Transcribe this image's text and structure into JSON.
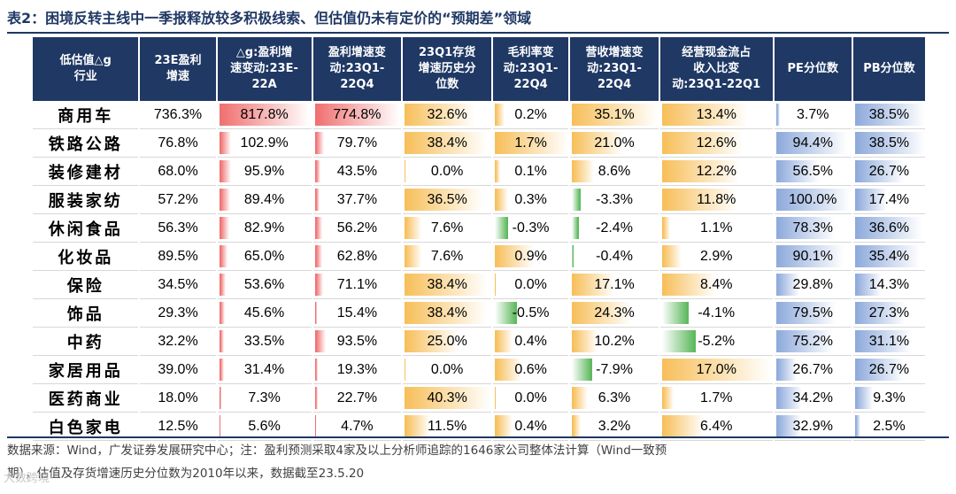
{
  "title": "表2：困境反转主线中一季报释放较多积极线索、但估值仍未有定价的“预期差”领域",
  "columns": [
    "低估值△g\n行业",
    "23E盈利\n增速",
    "△g:盈利增\n速变动:23E-\n22A",
    "盈利增速变\n动:23Q1-\n22Q4",
    "23Q1存货\n增速历史分\n位数",
    "毛利率变\n动:23Q1-\n22Q4",
    "营收增速变\n动:23Q1-\n22Q4",
    "经营现金流占\n收入比变\n动:23Q1-22Q1",
    "PE分位数",
    "PB分位数"
  ],
  "rows": [
    [
      "商用车",
      "736.3%",
      "817.8%",
      "774.8%",
      "32.6%",
      "0.2%",
      "35.1%",
      "13.4%",
      "3.7%",
      "38.5%"
    ],
    [
      "铁路公路",
      "76.8%",
      "102.9%",
      "79.7%",
      "38.4%",
      "1.7%",
      "21.0%",
      "12.6%",
      "94.4%",
      "38.5%"
    ],
    [
      "装修建材",
      "68.0%",
      "95.9%",
      "43.5%",
      "0.0%",
      "0.1%",
      "8.6%",
      "12.2%",
      "56.5%",
      "26.7%"
    ],
    [
      "服装家纺",
      "57.2%",
      "89.4%",
      "37.7%",
      "36.5%",
      "0.3%",
      "-3.3%",
      "11.8%",
      "100.0%",
      "17.4%"
    ],
    [
      "休闲食品",
      "56.3%",
      "82.9%",
      "56.2%",
      "7.6%",
      "-0.3%",
      "-2.4%",
      "1.1%",
      "78.3%",
      "36.6%"
    ],
    [
      "化妆品",
      "89.5%",
      "65.0%",
      "62.8%",
      "7.6%",
      "0.9%",
      "-0.4%",
      "2.9%",
      "90.1%",
      "35.4%"
    ],
    [
      "保险",
      "34.5%",
      "53.6%",
      "71.1%",
      "38.4%",
      "0.0%",
      "17.1%",
      "8.4%",
      "29.8%",
      "14.3%"
    ],
    [
      "饰品",
      "29.3%",
      "45.6%",
      "15.4%",
      "38.4%",
      "-0.5%",
      "24.3%",
      "-4.1%",
      "79.5%",
      "27.3%"
    ],
    [
      "中药",
      "32.2%",
      "33.5%",
      "93.5%",
      "25.0%",
      "0.4%",
      "10.2%",
      "-5.2%",
      "75.2%",
      "31.1%"
    ],
    [
      "家居用品",
      "39.0%",
      "31.4%",
      "19.3%",
      "0.0%",
      "0.6%",
      "-7.9%",
      "17.0%",
      "26.7%",
      "26.7%"
    ],
    [
      "医药商业",
      "18.0%",
      "7.3%",
      "22.7%",
      "40.3%",
      "0.0%",
      "6.3%",
      "1.7%",
      "34.2%",
      "9.3%"
    ],
    [
      "白色家电",
      "12.5%",
      "5.6%",
      "4.7%",
      "11.5%",
      "0.4%",
      "3.2%",
      "6.4%",
      "32.9%",
      "2.5%"
    ]
  ],
  "bar_columns": {
    "2": {
      "max": 817.8,
      "pos": "#f07070"
    },
    "3": {
      "max": 774.8,
      "pos": "#f07070"
    },
    "4": {
      "max": 40.3,
      "pos": "#f7bf5a"
    },
    "5": {
      "max": 1.7,
      "pos": "#f7bf5a",
      "neg": "#5cb85c"
    },
    "6": {
      "max": 35.1,
      "pos": "#f7bf5a",
      "neg": "#5cb85c"
    },
    "7": {
      "max": 17.0,
      "pos": "#f7bf5a",
      "neg": "#5cb85c"
    },
    "8": {
      "max": 100.0,
      "pos": "#8eaadb"
    },
    "9": {
      "max": 38.5,
      "pos": "#8eaadb"
    }
  },
  "footer": {
    "line1": "数据来源：Wind，广发证券发展研究中心；注：盈利预测采取4家及以上分析师追踪的1646家公司整体法计算（Wind一致预",
    "line2": "期），估值及存货增速历史分位数为2010年以来，数据截至23.5.20"
  },
  "watermark": "大数跨境"
}
